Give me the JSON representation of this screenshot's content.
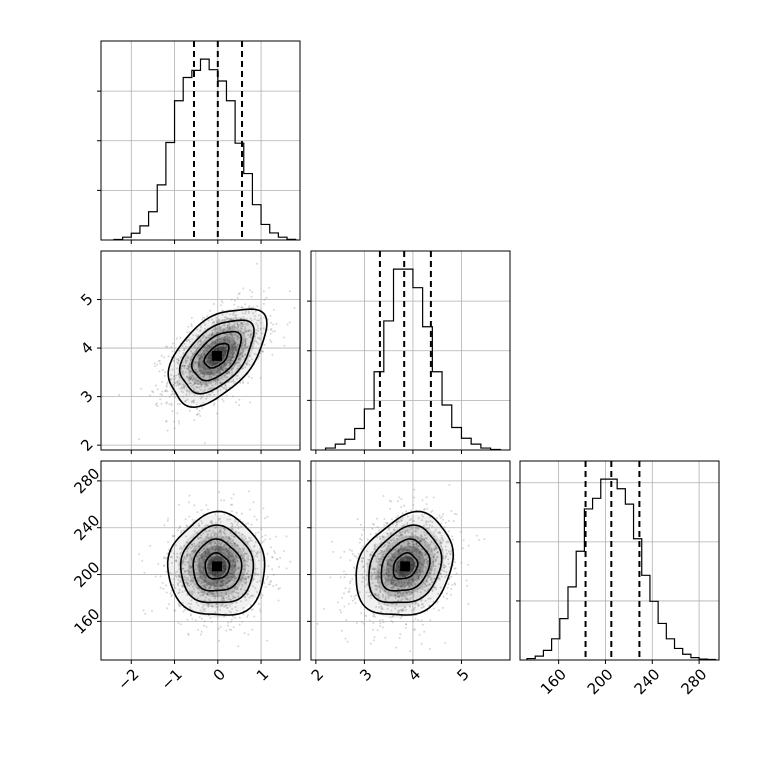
{
  "chart_data": {
    "type": "corner",
    "title": "",
    "variables": [
      {
        "name": "",
        "range": [
          -2.7,
          1.9
        ],
        "ticks": [
          -2,
          -1,
          0,
          1
        ],
        "tick_labels": [
          "−2",
          "−1",
          "0",
          "1"
        ],
        "quantiles": [
          -0.55,
          0.0,
          0.56
        ],
        "histogram": {
          "edges": [
            -2.4,
            -2.2,
            -2.0,
            -1.8,
            -1.6,
            -1.4,
            -1.2,
            -1.0,
            -0.8,
            -0.6,
            -0.4,
            -0.2,
            0.0,
            0.2,
            0.4,
            0.6,
            0.8,
            1.0,
            1.2,
            1.4,
            1.6,
            1.8
          ],
          "counts": [
            8,
            40,
            95,
            200,
            400,
            780,
            1380,
            1970,
            2300,
            2400,
            2560,
            2410,
            2250,
            1970,
            1370,
            940,
            500,
            220,
            100,
            40,
            10
          ]
        }
      },
      {
        "name": "",
        "range": [
          1.9,
          6.0
        ],
        "ticks": [
          2,
          3,
          4,
          5
        ],
        "tick_labels": [
          "2",
          "3",
          "4",
          "5"
        ],
        "quantiles": [
          3.32,
          3.82,
          4.37
        ],
        "histogram": {
          "edges": [
            2.2,
            2.4,
            2.6,
            2.8,
            3.0,
            3.2,
            3.4,
            3.6,
            3.8,
            4.0,
            4.2,
            4.4,
            4.6,
            4.8,
            5.0,
            5.2,
            5.4,
            5.6,
            5.8
          ],
          "counts": [
            20,
            60,
            110,
            220,
            420,
            800,
            1320,
            1850,
            1850,
            1660,
            1260,
            800,
            460,
            230,
            120,
            60,
            20,
            5
          ]
        }
      },
      {
        "name": "",
        "range": [
          127,
          297
        ],
        "ticks": [
          160,
          200,
          240,
          280
        ],
        "tick_labels": [
          "160",
          "200",
          "240",
          "280"
        ],
        "quantiles": [
          183,
          205,
          229
        ],
        "histogram": {
          "edges": [
            133,
            140,
            147,
            154,
            161,
            168,
            175,
            182,
            189,
            196,
            203,
            210,
            217,
            224,
            231,
            238,
            245,
            252,
            259,
            266,
            273,
            280,
            287,
            294
          ],
          "counts": [
            15,
            40,
            100,
            220,
            430,
            760,
            1130,
            1570,
            1680,
            1880,
            1880,
            1780,
            1620,
            1260,
            880,
            610,
            380,
            220,
            120,
            60,
            25,
            10,
            5
          ]
        }
      }
    ],
    "pairs": [
      {
        "row": 1,
        "col": 0,
        "mean": [
          -0.02,
          3.84
        ],
        "sd": [
          0.56,
          0.5
        ],
        "rho": 0.5
      },
      {
        "row": 2,
        "col": 0,
        "mean": [
          -0.02,
          207
        ],
        "sd": [
          0.56,
          22
        ],
        "rho": 0.0
      },
      {
        "row": 2,
        "col": 1,
        "mean": [
          3.84,
          207
        ],
        "sd": [
          0.5,
          22
        ],
        "rho": 0.22
      }
    ],
    "contour_levels_sigma": [
      0.5,
      1.0,
      1.5,
      2.0
    ],
    "colors": {
      "line": "#000000",
      "grid": "#b0b0b0",
      "points": "#8c8c8c",
      "shade": "#000000"
    },
    "grid": true
  }
}
